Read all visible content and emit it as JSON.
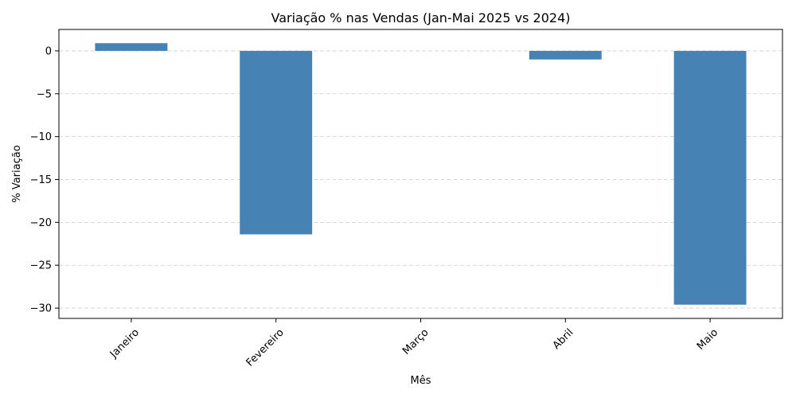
{
  "chart_data": {
    "type": "bar",
    "title": "Variação % nas Vendas (Jan-Mai 2025 vs 2024)",
    "xlabel": "Mês",
    "ylabel": "% Variação",
    "categories": [
      "Janeiro",
      "Fevereiro",
      "Março",
      "Abril",
      "Maio"
    ],
    "values": [
      0.9,
      -21.4,
      0,
      -1.0,
      -29.6
    ],
    "ylim": [
      -31.2,
      2.5
    ],
    "yticks": [
      0,
      -5,
      -10,
      -15,
      -20,
      -25,
      -30
    ],
    "grid": true,
    "legend": "none",
    "bar_color": "#4682b4",
    "grid_color": "#cccccc"
  }
}
